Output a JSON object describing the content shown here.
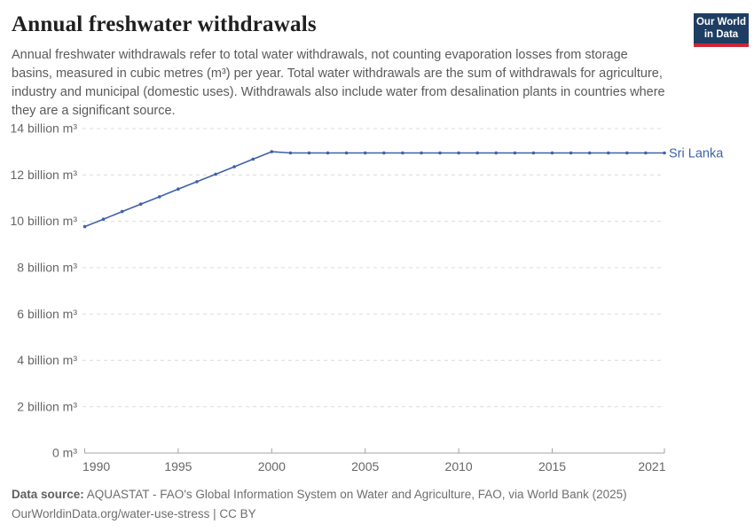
{
  "header": {
    "title": "Annual freshwater withdrawals",
    "subtitle": "Annual freshwater withdrawals refer to total water withdrawals, not counting evaporation losses from storage basins, measured in cubic metres (m³) per year. Total water withdrawals are the sum of withdrawals for agriculture, industry and municipal (domestic uses). Withdrawals also include water from desalination plants in countries where they are a significant source.",
    "logo": {
      "line1": "Our World",
      "line2": "in Data"
    }
  },
  "footer": {
    "source_label": "Data source:",
    "source_text": "AQUASTAT - FAO's Global Information System on Water and Agriculture, FAO, via World Bank (2025)",
    "attribution": "OurWorldinData.org/water-use-stress | CC BY"
  },
  "colors": {
    "line": "#3f62a8",
    "entity_label": "#3f62a8",
    "grid": "#dcdcdc",
    "axis": "#a3a3a3",
    "tick_label": "#666666",
    "logo_bg": "#1d3d63",
    "logo_stripe": "#cf2437"
  },
  "chart_data": {
    "type": "line",
    "title": "Annual freshwater withdrawals",
    "unit": "billion m³",
    "entity": "Sri Lanka",
    "x": [
      1990,
      1991,
      1992,
      1993,
      1994,
      1995,
      1996,
      1997,
      1998,
      1999,
      2000,
      2001,
      2002,
      2003,
      2004,
      2005,
      2006,
      2007,
      2008,
      2009,
      2010,
      2011,
      2012,
      2013,
      2014,
      2015,
      2016,
      2017,
      2018,
      2019,
      2020,
      2021
    ],
    "series": [
      {
        "name": "Sri Lanka",
        "values": [
          9.77,
          10.09,
          10.42,
          10.74,
          11.06,
          11.39,
          11.71,
          12.03,
          12.35,
          12.68,
          13.0,
          12.95,
          12.95,
          12.95,
          12.95,
          12.95,
          12.95,
          12.95,
          12.95,
          12.95,
          12.95,
          12.95,
          12.95,
          12.95,
          12.95,
          12.95,
          12.95,
          12.95,
          12.95,
          12.95,
          12.95,
          12.95
        ]
      }
    ],
    "xlim": [
      1990,
      2021
    ],
    "ylim": [
      0,
      14
    ],
    "xticks": [
      1990,
      1995,
      2000,
      2005,
      2010,
      2015,
      2021
    ],
    "yticks": [
      0,
      2,
      4,
      6,
      8,
      10,
      12,
      14
    ],
    "ytick_labels": [
      "0 m³",
      "2 billion m³",
      "4 billion m³",
      "6 billion m³",
      "8 billion m³",
      "10 billion m³",
      "12 billion m³",
      "14 billion m³"
    ],
    "grid": true,
    "legend": "entity label at end of line"
  }
}
